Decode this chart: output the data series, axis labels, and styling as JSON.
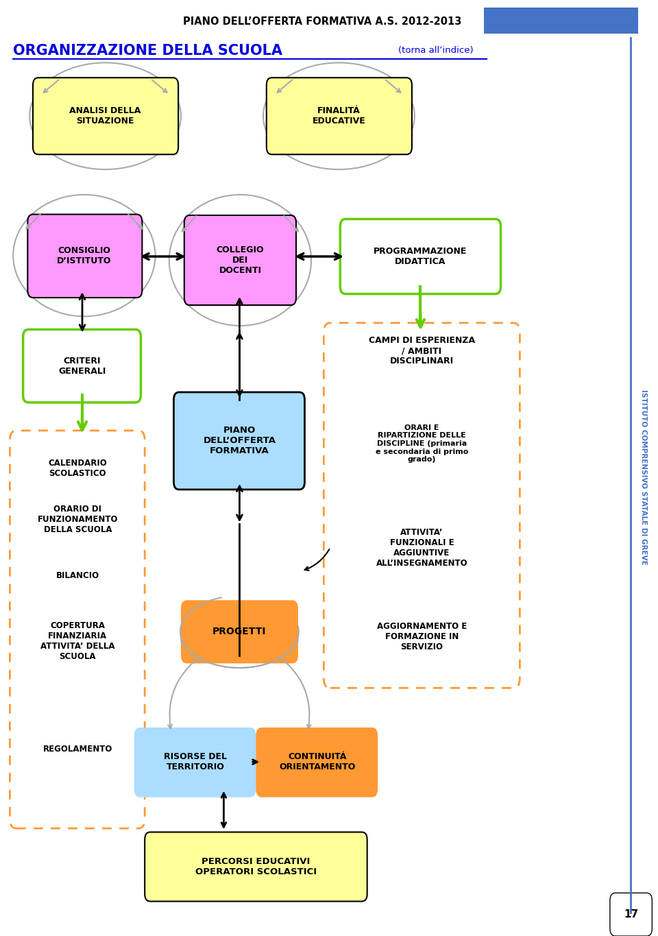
{
  "title_header": "PIANO DELL’OFFERTA FORMATIVA A.S. 2012-2013",
  "title_main": "ORGANIZZAZIONE DELLA SCUOLA",
  "title_sub": "(torna all’indice)",
  "header_rect_color": "#4472c4",
  "bg_color": "#ffffff",
  "green": "#66cc00",
  "blue_header": "#4472c4",
  "blue_box": "#aaddff",
  "pink": "#ff99ff",
  "yellow": "#ffff99",
  "orange_box": "#ff9933",
  "black": "#000000",
  "gray": "#aaaaaa",
  "vertical_text": "ISTITUTO COMPRENSIVO STATALE DI GREVE",
  "page_number": "17"
}
